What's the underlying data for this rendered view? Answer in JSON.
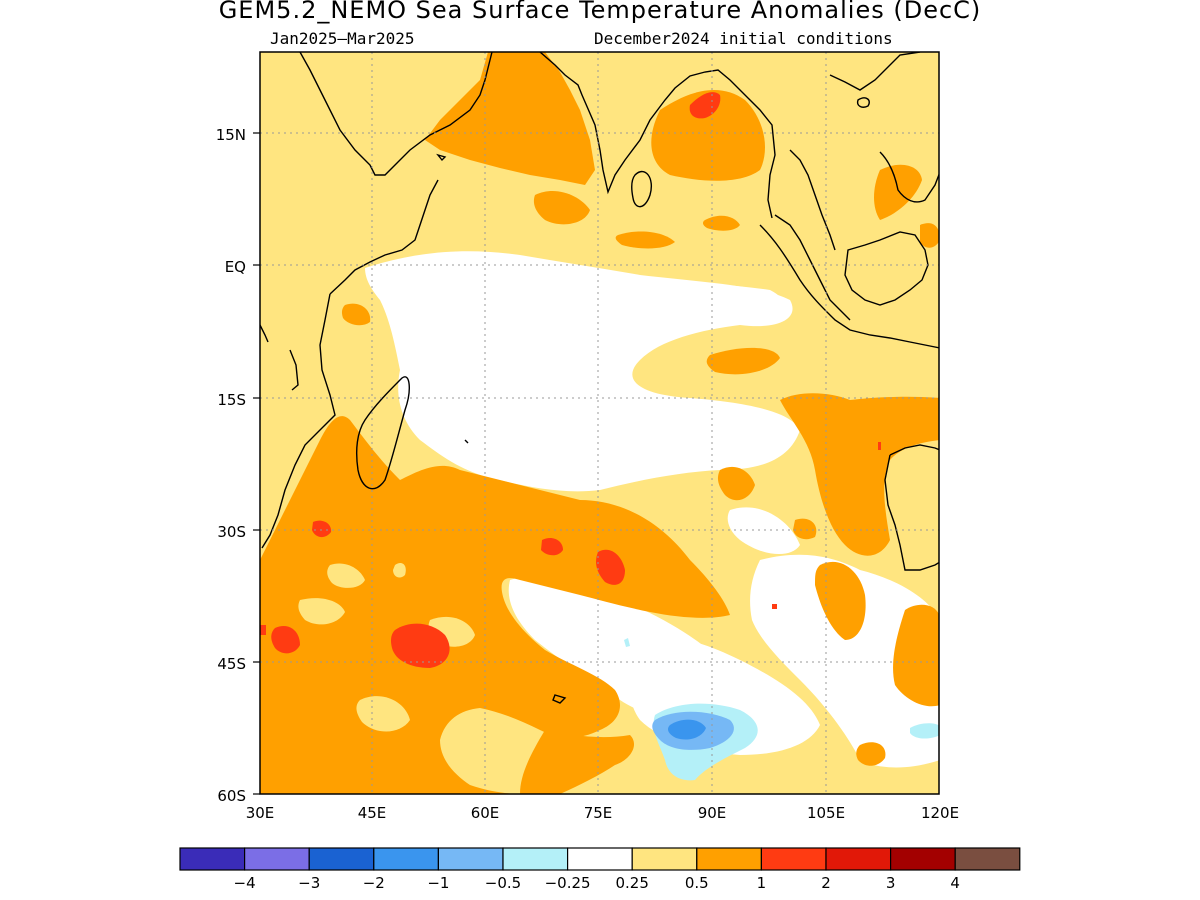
{
  "title": "GEM5.2_NEMO Sea Surface Temperature Anomalies (DecC)",
  "subtitle_left": "Jan2025–Mar2025",
  "subtitle_right": "December2024 initial conditions",
  "lat_labels": [
    "15N",
    "EQ",
    "15S",
    "30S",
    "45S",
    "60S"
  ],
  "lon_labels": [
    "30E",
    "45E",
    "60E",
    "75E",
    "90E",
    "105E",
    "120E"
  ],
  "colorbar": {
    "labels": [
      "−4",
      "−3",
      "−2",
      "−1",
      "−0.5",
      "−0.25",
      "0.25",
      "0.5",
      "1",
      "2",
      "3",
      "4"
    ],
    "colors": [
      "#3a2cb8",
      "#7b6ee6",
      "#1a62d2",
      "#3a95ee",
      "#76b8f5",
      "#b4f0f8",
      "#ffffff",
      "#ffe580",
      "#ffa000",
      "#ff3b12",
      "#e11808",
      "#a30000",
      "#7a4e40"
    ]
  },
  "palette": {
    "light_orange": "#ffe580",
    "orange": "#ffa000",
    "red": "#ff3b12",
    "light_blue": "#b4f0f8",
    "med_blue": "#76b8f5",
    "blue": "#3a95ee"
  }
}
